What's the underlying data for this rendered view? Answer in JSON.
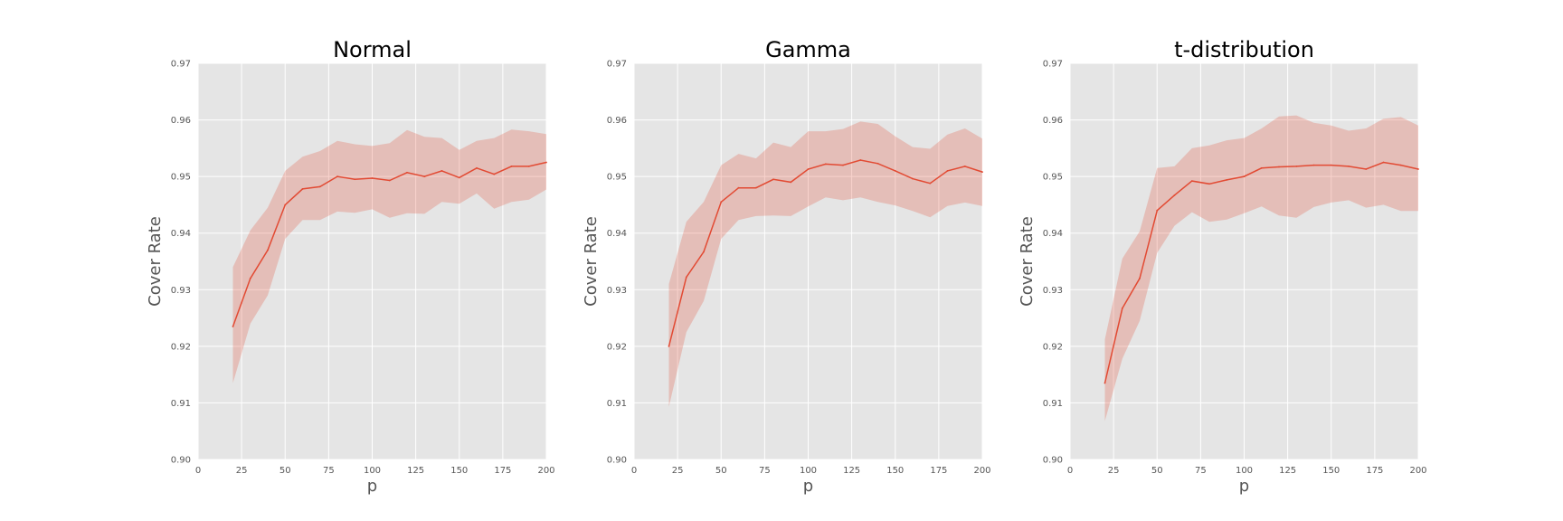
{
  "figure": {
    "background": "#ffffff"
  },
  "style": {
    "plot_background": "#e5e5e5",
    "grid_color": "#ffffff",
    "line_color": "#e24a33",
    "band_color": "#e24a33",
    "band_opacity": 0.25
  },
  "chart_data": [
    {
      "type": "line",
      "title": "Normal",
      "xlabel": "p",
      "ylabel": "Cover Rate",
      "xlim": [
        0,
        200
      ],
      "ylim": [
        0.9,
        0.97
      ],
      "xticks": [
        0,
        25,
        50,
        75,
        100,
        125,
        150,
        175,
        200
      ],
      "xtick_labels": [
        "0",
        "25",
        "50",
        "75",
        "100",
        "125",
        "150",
        "175",
        "200"
      ],
      "yticks": [
        0.9,
        0.91,
        0.92,
        0.93,
        0.94,
        0.95,
        0.96,
        0.97
      ],
      "ytick_labels": [
        "0.90",
        "0.91",
        "0.92",
        "0.93",
        "0.94",
        "0.95",
        "0.96",
        "0.97"
      ],
      "grid": true,
      "x": [
        20,
        30,
        40,
        50,
        60,
        70,
        80,
        90,
        100,
        110,
        120,
        130,
        140,
        150,
        160,
        170,
        180,
        190,
        200
      ],
      "series": [
        {
          "values": [
            0.9235,
            0.932,
            0.937,
            0.945,
            0.9478,
            0.9482,
            0.95,
            0.9495,
            0.9497,
            0.9493,
            0.9507,
            0.95,
            0.951,
            0.9498,
            0.9515,
            0.9504,
            0.9518,
            0.9518,
            0.9525
          ],
          "lower": [
            0.9135,
            0.924,
            0.929,
            0.939,
            0.9423,
            0.9423,
            0.9438,
            0.9436,
            0.9442,
            0.9427,
            0.9435,
            0.9434,
            0.9455,
            0.9452,
            0.947,
            0.9443,
            0.9455,
            0.9459,
            0.9477
          ],
          "upper": [
            0.934,
            0.9405,
            0.9445,
            0.951,
            0.9535,
            0.9545,
            0.9563,
            0.9557,
            0.9554,
            0.9559,
            0.9582,
            0.957,
            0.9568,
            0.9547,
            0.9563,
            0.9568,
            0.9583,
            0.958,
            0.9575
          ]
        }
      ]
    },
    {
      "type": "line",
      "title": "Gamma",
      "xlabel": "p",
      "ylabel": "Cover Rate",
      "xlim": [
        0,
        200
      ],
      "ylim": [
        0.9,
        0.97
      ],
      "xticks": [
        0,
        25,
        50,
        75,
        100,
        125,
        150,
        175,
        200
      ],
      "xtick_labels": [
        "0",
        "25",
        "50",
        "75",
        "100",
        "125",
        "150",
        "175",
        "200"
      ],
      "yticks": [
        0.9,
        0.91,
        0.92,
        0.93,
        0.94,
        0.95,
        0.96,
        0.97
      ],
      "ytick_labels": [
        "0.90",
        "0.91",
        "0.92",
        "0.93",
        "0.94",
        "0.95",
        "0.96",
        "0.97"
      ],
      "grid": true,
      "x": [
        20,
        30,
        40,
        50,
        60,
        70,
        80,
        90,
        100,
        110,
        120,
        130,
        140,
        150,
        160,
        170,
        180,
        190,
        200
      ],
      "series": [
        {
          "values": [
            0.92,
            0.9322,
            0.9367,
            0.9455,
            0.948,
            0.948,
            0.9495,
            0.949,
            0.9513,
            0.9522,
            0.952,
            0.9529,
            0.9523,
            0.951,
            0.9496,
            0.9488,
            0.951,
            0.9518,
            0.9508
          ],
          "lower": [
            0.9093,
            0.9225,
            0.928,
            0.939,
            0.9423,
            0.943,
            0.9431,
            0.943,
            0.9447,
            0.9463,
            0.9458,
            0.9463,
            0.9455,
            0.9449,
            0.9439,
            0.9428,
            0.9448,
            0.9454,
            0.9448
          ],
          "upper": [
            0.931,
            0.942,
            0.9455,
            0.952,
            0.954,
            0.9532,
            0.956,
            0.9552,
            0.958,
            0.958,
            0.9584,
            0.9597,
            0.9593,
            0.9571,
            0.9552,
            0.9549,
            0.9574,
            0.9585,
            0.9567
          ]
        }
      ]
    },
    {
      "type": "line",
      "title": "t-distribution",
      "xlabel": "p",
      "ylabel": "Cover Rate",
      "xlim": [
        0,
        200
      ],
      "ylim": [
        0.9,
        0.97
      ],
      "xticks": [
        0,
        25,
        50,
        75,
        100,
        125,
        150,
        175,
        200
      ],
      "xtick_labels": [
        "0",
        "25",
        "50",
        "75",
        "100",
        "125",
        "150",
        "175",
        "200"
      ],
      "yticks": [
        0.9,
        0.91,
        0.92,
        0.93,
        0.94,
        0.95,
        0.96,
        0.97
      ],
      "ytick_labels": [
        "0.90",
        "0.91",
        "0.92",
        "0.93",
        "0.94",
        "0.95",
        "0.96",
        "0.97"
      ],
      "grid": true,
      "x": [
        20,
        30,
        40,
        50,
        60,
        70,
        80,
        90,
        100,
        110,
        120,
        130,
        140,
        150,
        160,
        170,
        180,
        190,
        200
      ],
      "series": [
        {
          "values": [
            0.9135,
            0.9267,
            0.932,
            0.944,
            0.9467,
            0.9492,
            0.9487,
            0.9494,
            0.95,
            0.9515,
            0.9517,
            0.9518,
            0.952,
            0.952,
            0.9518,
            0.9513,
            0.9525,
            0.952,
            0.9513
          ],
          "lower": [
            0.9068,
            0.9178,
            0.9245,
            0.9365,
            0.9413,
            0.9437,
            0.942,
            0.9424,
            0.9435,
            0.9447,
            0.9431,
            0.9427,
            0.9446,
            0.9454,
            0.9458,
            0.9445,
            0.945,
            0.9439,
            0.9439
          ],
          "upper": [
            0.9212,
            0.9355,
            0.9403,
            0.9515,
            0.9518,
            0.955,
            0.9555,
            0.9564,
            0.9568,
            0.9585,
            0.9606,
            0.9608,
            0.9595,
            0.959,
            0.9581,
            0.9585,
            0.9602,
            0.9605,
            0.959
          ]
        }
      ]
    }
  ]
}
